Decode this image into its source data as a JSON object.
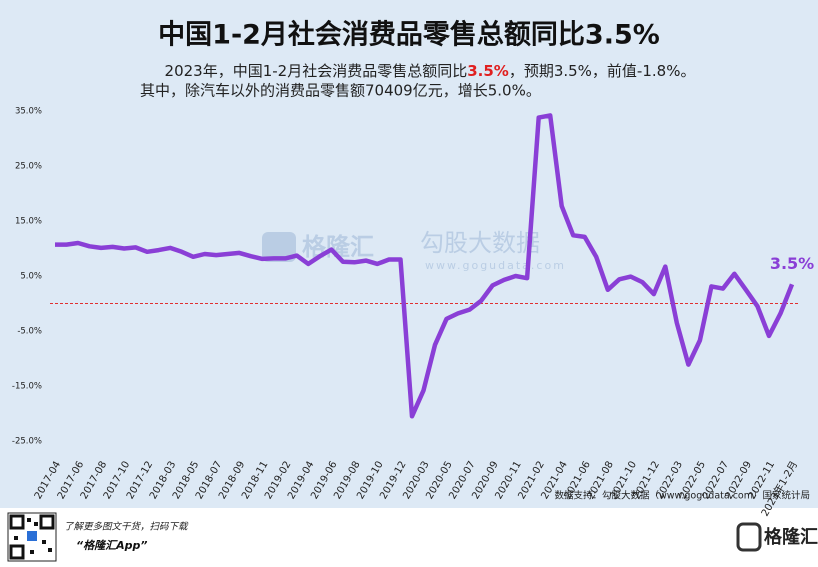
{
  "chart_data": {
    "type": "line",
    "title": "中国1-2月社会消费品零售总额同比3.5%",
    "subtitle": [
      "2023年，中国1-2月社会消费品零售总额同比",
      "3.5%",
      "，预期3.5%，前值-1.8%。"
    ],
    "subtitle2": "其中，除汽车以外的消费品零售额70409亿元，增长5.0%。",
    "categories": [
      "2017-04",
      null,
      "2017-06",
      null,
      "2017-08",
      null,
      "2017-10",
      null,
      "2017-12",
      null,
      "2018-03",
      null,
      "2018-05",
      null,
      "2018-07",
      null,
      "2018-09",
      null,
      "2018-11",
      null,
      "2019-02",
      null,
      "2019-04",
      null,
      "2019-06",
      null,
      "2019-08",
      null,
      "2019-10",
      null,
      "2019-12",
      null,
      "2020-03",
      null,
      "2020-05",
      null,
      "2020-07",
      null,
      "2020-09",
      null,
      "2020-11",
      null,
      "2021-02",
      null,
      "2021-04",
      null,
      "2021-06",
      null,
      "2021-08",
      null,
      "2021-10",
      null,
      "2021-12",
      null,
      "2022-03",
      null,
      "2022-05",
      null,
      "2022-07",
      null,
      "2022-09",
      null,
      "2022-11",
      null,
      "2023年1-2月"
    ],
    "series": [
      {
        "name": "社会消费品零售总额同比",
        "color": "#8a3fd6",
        "values": [
          10.7,
          10.7,
          11.0,
          10.4,
          10.1,
          10.3,
          10.0,
          10.2,
          9.4,
          9.7,
          10.1,
          9.4,
          8.5,
          9.0,
          8.8,
          9.0,
          9.2,
          8.6,
          8.1,
          8.2,
          8.2,
          8.7,
          7.2,
          8.6,
          9.8,
          7.6,
          7.5,
          7.8,
          7.2,
          8.0,
          8.0,
          -20.5,
          -15.8,
          -7.5,
          -2.8,
          -1.8,
          -1.1,
          0.5,
          3.3,
          4.3,
          5.0,
          4.6,
          33.8,
          34.2,
          17.7,
          12.4,
          12.1,
          8.5,
          2.5,
          4.4,
          4.9,
          3.9,
          1.7,
          6.7,
          -3.5,
          -11.1,
          -6.7,
          3.1,
          2.7,
          5.4,
          2.5,
          -0.5,
          -5.9,
          -1.8,
          3.5
        ],
        "value_labels": {
          "64": "3.5%"
        }
      }
    ],
    "ylim": [
      -27,
      37
    ],
    "yticks": [
      {
        "value": 35,
        "label": "35.0%"
      },
      {
        "value": 25,
        "label": "25.0%"
      },
      {
        "value": 15,
        "label": "15.0%"
      },
      {
        "value": 5,
        "label": "5.0%"
      },
      {
        "value": -5,
        "label": "-5.0%"
      },
      {
        "value": -15,
        "label": "-15.0%"
      },
      {
        "value": -25,
        "label": "-25.0%"
      }
    ],
    "grid": false,
    "source": "数据支持：勾股大数据（www.gogudata.com）国家统计局",
    "watermark": [
      "格隆汇",
      "勾股大数据",
      "www.gogudata.com"
    ],
    "footer": [
      "了解更多图文干货，扫码下载",
      "“格隆汇App”"
    ],
    "logo": "格隆汇"
  }
}
